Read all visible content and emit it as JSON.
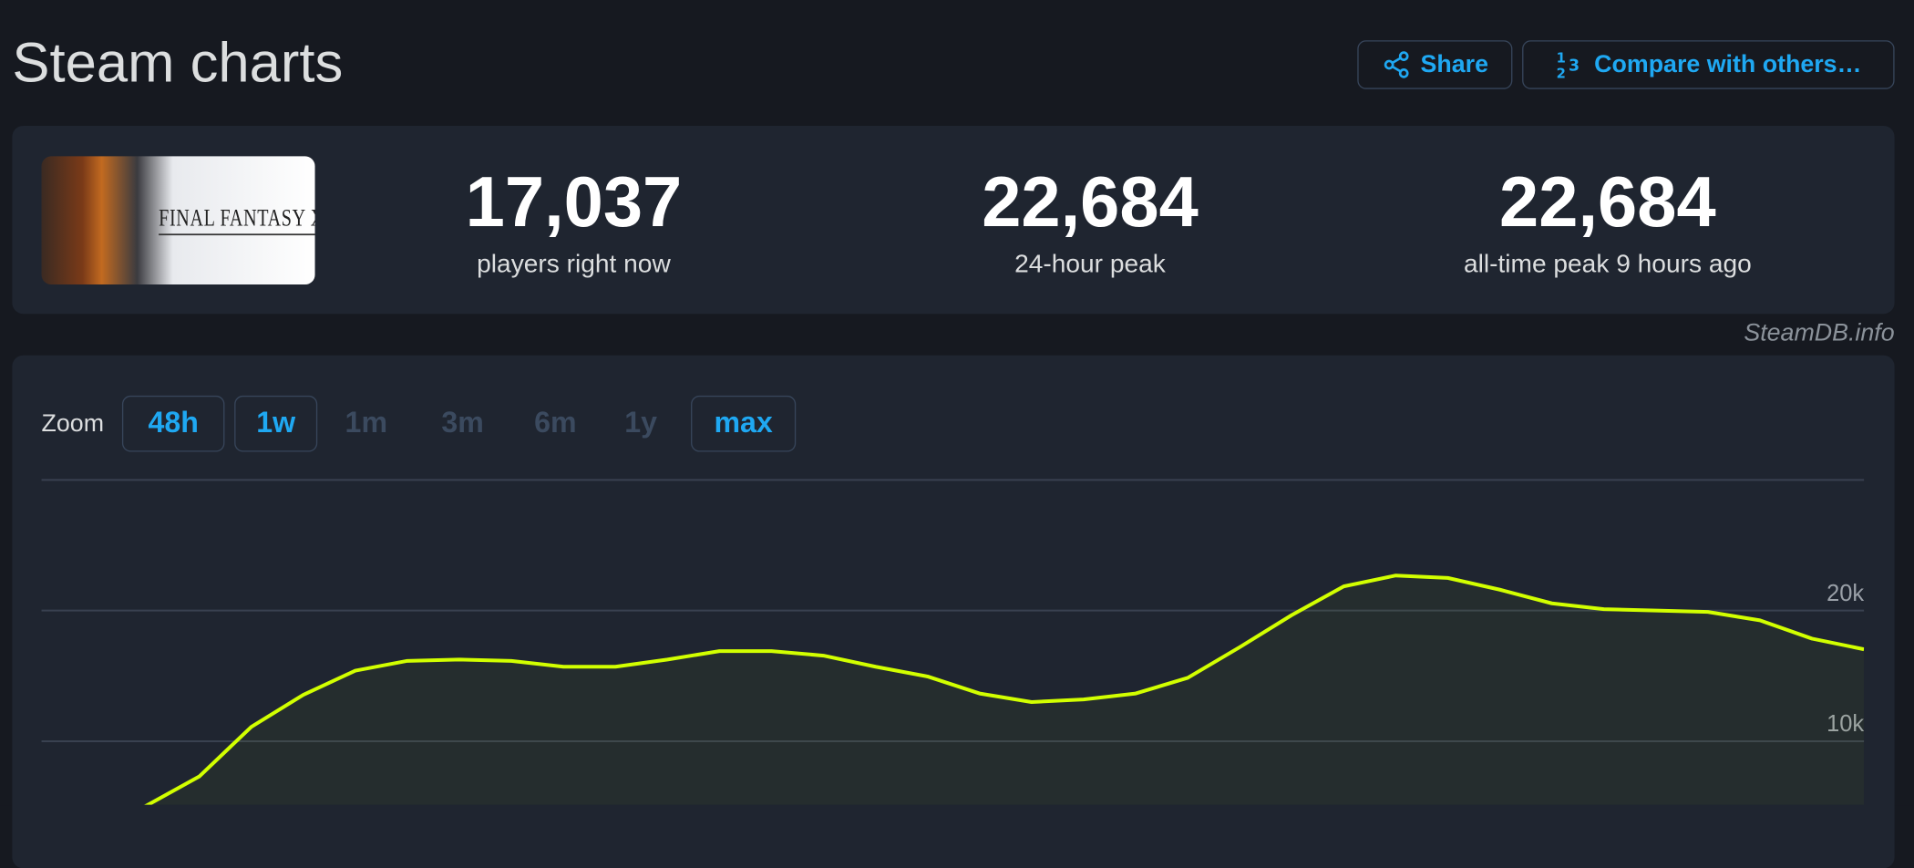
{
  "header": {
    "title": "Steam charts",
    "share_label": "Share",
    "compare_label": "Compare with others…"
  },
  "game": {
    "name": "FINAL FANTASY XVI"
  },
  "stats": [
    {
      "value": "17,037",
      "label": "players right now"
    },
    {
      "value": "22,684",
      "label": "24-hour peak"
    },
    {
      "value": "22,684",
      "label": "all-time peak 9 hours ago"
    }
  ],
  "credit": "SteamDB.info",
  "zoom": {
    "label": "Zoom",
    "options": [
      {
        "label": "48h",
        "enabled": true
      },
      {
        "label": "1w",
        "enabled": true
      },
      {
        "label": "1m",
        "enabled": false
      },
      {
        "label": "3m",
        "enabled": false
      },
      {
        "label": "6m",
        "enabled": false
      },
      {
        "label": "1y",
        "enabled": false
      },
      {
        "label": "max",
        "enabled": true
      }
    ]
  },
  "colors": {
    "accent": "#1fa8f2",
    "line": "#d2ff00",
    "background": "#161920",
    "card": "#1f2530"
  },
  "chart_data": {
    "type": "line",
    "title": "",
    "xlabel": "",
    "ylabel": "",
    "grid": true,
    "yticks": [
      10000,
      20000,
      30000
    ],
    "ytick_labels": [
      "10k",
      "20k",
      ""
    ],
    "values": [
      3000,
      5100,
      7300,
      11100,
      13550,
      15400,
      16150,
      16250,
      16150,
      15700,
      15700,
      16250,
      16900,
      16900,
      16550,
      15700,
      14950,
      13650,
      13000,
      13200,
      13650,
      14850,
      17200,
      19650,
      21850,
      22684,
      22500,
      21600,
      20550,
      20100,
      20000,
      19900,
      19250,
      17850,
      17037
    ]
  }
}
